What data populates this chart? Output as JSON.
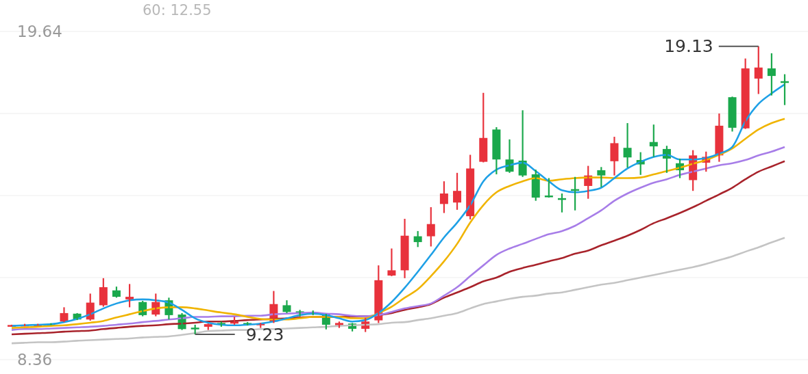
{
  "chart_data": {
    "type": "candlestick",
    "categories": [
      null,
      null,
      null,
      null,
      null,
      null,
      null,
      null,
      null,
      null,
      null,
      null,
      null,
      null,
      null,
      null,
      null,
      null,
      null,
      null,
      null,
      null,
      null,
      null,
      null,
      null,
      null,
      null,
      null,
      null,
      null,
      null,
      null,
      null,
      null,
      null,
      null,
      null,
      null,
      null,
      null,
      null,
      null,
      null,
      null,
      null,
      null,
      null,
      null,
      null,
      null,
      null,
      null,
      null,
      null,
      null,
      null,
      null,
      null,
      null
    ],
    "ohlc": [
      [
        9.53,
        9.56,
        9.5,
        9.55
      ],
      [
        9.53,
        9.59,
        9.51,
        9.56
      ],
      [
        9.55,
        9.59,
        9.54,
        9.57
      ],
      [
        9.59,
        9.61,
        9.55,
        9.56
      ],
      [
        9.67,
        10.16,
        9.65,
        9.96
      ],
      [
        9.94,
        9.96,
        9.72,
        9.74
      ],
      [
        9.74,
        10.63,
        9.7,
        10.32
      ],
      [
        10.23,
        11.16,
        10.18,
        10.85
      ],
      [
        10.74,
        10.87,
        10.49,
        10.52
      ],
      [
        10.43,
        10.96,
        10.16,
        10.52
      ],
      [
        10.34,
        10.38,
        9.85,
        9.89
      ],
      [
        9.91,
        10.63,
        9.85,
        10.34
      ],
      [
        10.4,
        10.49,
        9.74,
        9.89
      ],
      [
        9.91,
        9.96,
        9.38,
        9.41
      ],
      [
        9.46,
        9.56,
        9.23,
        9.44
      ],
      [
        9.49,
        9.6,
        9.38,
        9.58
      ],
      [
        9.62,
        9.67,
        9.49,
        9.6
      ],
      [
        9.6,
        9.83,
        9.56,
        9.67
      ],
      [
        9.62,
        9.65,
        9.54,
        9.58
      ],
      [
        9.54,
        9.62,
        9.45,
        9.6
      ],
      [
        9.67,
        10.72,
        9.62,
        10.27
      ],
      [
        10.23,
        10.4,
        9.96,
        10.0
      ],
      [
        10.02,
        10.07,
        9.85,
        9.96
      ],
      [
        9.98,
        10.05,
        9.89,
        9.91
      ],
      [
        9.91,
        9.93,
        9.4,
        9.56
      ],
      [
        9.54,
        9.67,
        9.45,
        9.62
      ],
      [
        9.6,
        9.62,
        9.33,
        9.42
      ],
      [
        9.42,
        9.8,
        9.31,
        9.67
      ],
      [
        9.71,
        11.6,
        9.62,
        11.09
      ],
      [
        11.25,
        12.18,
        11.23,
        11.43
      ],
      [
        11.43,
        13.2,
        11.16,
        12.62
      ],
      [
        12.6,
        12.78,
        12.23,
        12.4
      ],
      [
        12.6,
        13.6,
        12.25,
        13.02
      ],
      [
        13.71,
        14.49,
        13.4,
        14.07
      ],
      [
        13.76,
        14.78,
        13.51,
        14.16
      ],
      [
        13.29,
        15.4,
        13.18,
        14.93
      ],
      [
        15.16,
        17.53,
        15.14,
        15.98
      ],
      [
        16.27,
        16.35,
        14.73,
        15.24
      ],
      [
        15.24,
        15.93,
        14.78,
        14.82
      ],
      [
        15.2,
        16.93,
        14.64,
        14.69
      ],
      [
        14.73,
        14.89,
        13.82,
        13.93
      ],
      [
        14.0,
        14.6,
        13.93,
        13.96
      ],
      [
        13.91,
        14.07,
        13.42,
        13.87
      ],
      [
        14.22,
        14.64,
        13.49,
        14.18
      ],
      [
        14.33,
        15.02,
        13.89,
        14.69
      ],
      [
        14.87,
        14.98,
        14.29,
        14.69
      ],
      [
        15.18,
        16.02,
        14.69,
        15.8
      ],
      [
        15.64,
        16.49,
        14.96,
        15.31
      ],
      [
        15.22,
        15.49,
        14.71,
        15.07
      ],
      [
        15.84,
        16.44,
        15.33,
        15.69
      ],
      [
        15.6,
        15.71,
        14.78,
        15.27
      ],
      [
        15.11,
        15.27,
        14.6,
        14.87
      ],
      [
        14.53,
        15.56,
        14.16,
        15.38
      ],
      [
        15.13,
        15.51,
        14.82,
        15.33
      ],
      [
        15.38,
        16.82,
        15.16,
        16.4
      ],
      [
        17.38,
        17.4,
        16.2,
        16.33
      ],
      [
        16.31,
        18.71,
        16.29,
        18.37
      ],
      [
        18.02,
        19.13,
        17.49,
        18.4
      ],
      [
        18.37,
        18.89,
        17.44,
        18.11
      ],
      [
        17.93,
        18.17,
        17.11,
        17.89
      ]
    ],
    "colors": [
      "#e8323c",
      "#e8323c",
      "#e8323c",
      "#1aa84c",
      "#e8323c",
      "#1aa84c",
      "#e8323c",
      "#e8323c",
      "#1aa84c",
      "#e8323c",
      "#1aa84c",
      "#e8323c",
      "#1aa84c",
      "#1aa84c",
      "#1aa84c",
      "#e8323c",
      "#1aa84c",
      "#e8323c",
      "#1aa84c",
      "#e8323c",
      "#e8323c",
      "#1aa84c",
      "#1aa84c",
      "#1aa84c",
      "#1aa84c",
      "#e8323c",
      "#1aa84c",
      "#e8323c",
      "#e8323c",
      "#e8323c",
      "#e8323c",
      "#1aa84c",
      "#e8323c",
      "#e8323c",
      "#e8323c",
      "#e8323c",
      "#e8323c",
      "#1aa84c",
      "#1aa84c",
      "#1aa84c",
      "#1aa84c",
      "#1aa84c",
      "#1aa84c",
      "#1aa84c",
      "#e8323c",
      "#1aa84c",
      "#e8323c",
      "#1aa84c",
      "#1aa84c",
      "#1aa84c",
      "#1aa84c",
      "#1aa84c",
      "#e8323c",
      "#e8323c",
      "#e8323c",
      "#1aa84c",
      "#e8323c",
      "#e8323c",
      "#1aa84c",
      "#1aa84c"
    ],
    "series": [
      {
        "type": "line",
        "color": "#c4c4c4",
        "values": [
          8.92,
          8.94,
          8.96,
          8.96,
          8.98,
          9.01,
          9.03,
          9.05,
          9.07,
          9.09,
          9.12,
          9.14,
          9.16,
          9.21,
          9.27,
          9.34,
          9.36,
          9.38,
          9.38,
          9.41,
          9.41,
          9.43,
          9.45,
          9.47,
          9.49,
          9.52,
          9.54,
          9.56,
          9.58,
          9.63,
          9.65,
          9.72,
          9.78,
          9.87,
          9.96,
          10.12,
          10.27,
          10.36,
          10.45,
          10.52,
          10.56,
          10.63,
          10.67,
          10.76,
          10.85,
          10.94,
          11.0,
          11.09,
          11.18,
          11.27,
          11.36,
          11.45,
          11.54,
          11.65,
          11.78,
          11.91,
          12.07,
          12.22,
          12.39,
          12.55
        ]
      },
      {
        "type": "line",
        "color": "#a8232b",
        "values": [
          9.23,
          9.25,
          9.27,
          9.29,
          9.32,
          9.34,
          9.36,
          9.41,
          9.45,
          9.49,
          9.52,
          9.54,
          9.58,
          9.6,
          9.63,
          9.67,
          9.67,
          9.69,
          9.72,
          9.74,
          9.76,
          9.78,
          9.81,
          9.83,
          9.83,
          9.83,
          9.85,
          9.85,
          9.89,
          9.96,
          10.07,
          10.16,
          10.27,
          10.49,
          10.67,
          10.85,
          11.05,
          11.18,
          11.38,
          11.51,
          11.62,
          11.74,
          11.85,
          12.0,
          12.11,
          12.29,
          12.45,
          12.62,
          12.82,
          13.05,
          13.22,
          13.4,
          13.6,
          13.82,
          14.04,
          14.27,
          14.56,
          14.82,
          15.0,
          15.18
        ]
      },
      {
        "type": "line",
        "color": "#a77de8",
        "values": [
          9.38,
          9.41,
          9.41,
          9.43,
          9.45,
          9.47,
          9.49,
          9.52,
          9.56,
          9.6,
          9.65,
          9.69,
          9.74,
          9.78,
          9.83,
          9.83,
          9.85,
          9.85,
          9.87,
          9.87,
          9.92,
          9.94,
          9.96,
          9.98,
          9.94,
          9.92,
          9.87,
          9.85,
          9.89,
          10.0,
          10.12,
          10.2,
          10.29,
          10.56,
          10.85,
          11.23,
          11.6,
          11.96,
          12.18,
          12.34,
          12.51,
          12.67,
          12.78,
          12.96,
          13.22,
          13.49,
          13.82,
          14.07,
          14.27,
          14.44,
          14.56,
          14.71,
          14.82,
          14.93,
          15.04,
          15.11,
          15.22,
          15.38,
          15.51,
          15.67
        ]
      },
      {
        "type": "line",
        "color": "#f0b400",
        "values": [
          9.45,
          9.47,
          9.49,
          9.52,
          9.54,
          9.58,
          9.63,
          9.69,
          9.81,
          9.92,
          10.03,
          10.12,
          10.16,
          10.16,
          10.12,
          10.05,
          9.98,
          9.92,
          9.83,
          9.76,
          9.74,
          9.74,
          9.78,
          9.83,
          9.83,
          9.83,
          9.78,
          9.78,
          9.96,
          10.18,
          10.49,
          10.78,
          11.23,
          11.74,
          12.34,
          13.07,
          13.67,
          14.11,
          14.33,
          14.49,
          14.6,
          14.51,
          14.56,
          14.6,
          14.62,
          14.62,
          14.6,
          14.6,
          14.62,
          14.73,
          14.84,
          14.96,
          15.09,
          15.22,
          15.4,
          15.62,
          15.95,
          16.27,
          16.49,
          16.64
        ]
      },
      {
        "type": "line",
        "color": "#1ea0e6",
        "values": [
          9.52,
          9.54,
          9.56,
          9.58,
          9.65,
          9.76,
          9.92,
          10.12,
          10.29,
          10.4,
          10.43,
          10.4,
          10.32,
          10.07,
          9.78,
          9.63,
          9.56,
          9.54,
          9.56,
          9.6,
          9.67,
          9.78,
          9.89,
          9.94,
          9.89,
          9.78,
          9.67,
          9.72,
          9.96,
          10.34,
          10.83,
          11.38,
          11.96,
          12.56,
          13.07,
          13.67,
          14.49,
          14.89,
          15.04,
          15.13,
          14.84,
          14.49,
          14.18,
          14.11,
          14.16,
          14.27,
          14.6,
          14.93,
          15.16,
          15.33,
          15.4,
          15.24,
          15.24,
          15.29,
          15.44,
          15.67,
          16.55,
          17.15,
          17.51,
          17.82
        ]
      }
    ],
    "ylim": [
      8.36,
      19.64
    ],
    "yticks": [
      {
        "value": 19.64,
        "label": "19.64"
      },
      {
        "value": 16.82,
        "label": null
      },
      {
        "value": 14.0,
        "label": null
      },
      {
        "value": 11.18,
        "label": null
      },
      {
        "value": 8.36,
        "label": "8.36"
      }
    ],
    "grid": "y",
    "annotations": [
      "60: 12.55",
      "19.13",
      "9.23"
    ]
  }
}
